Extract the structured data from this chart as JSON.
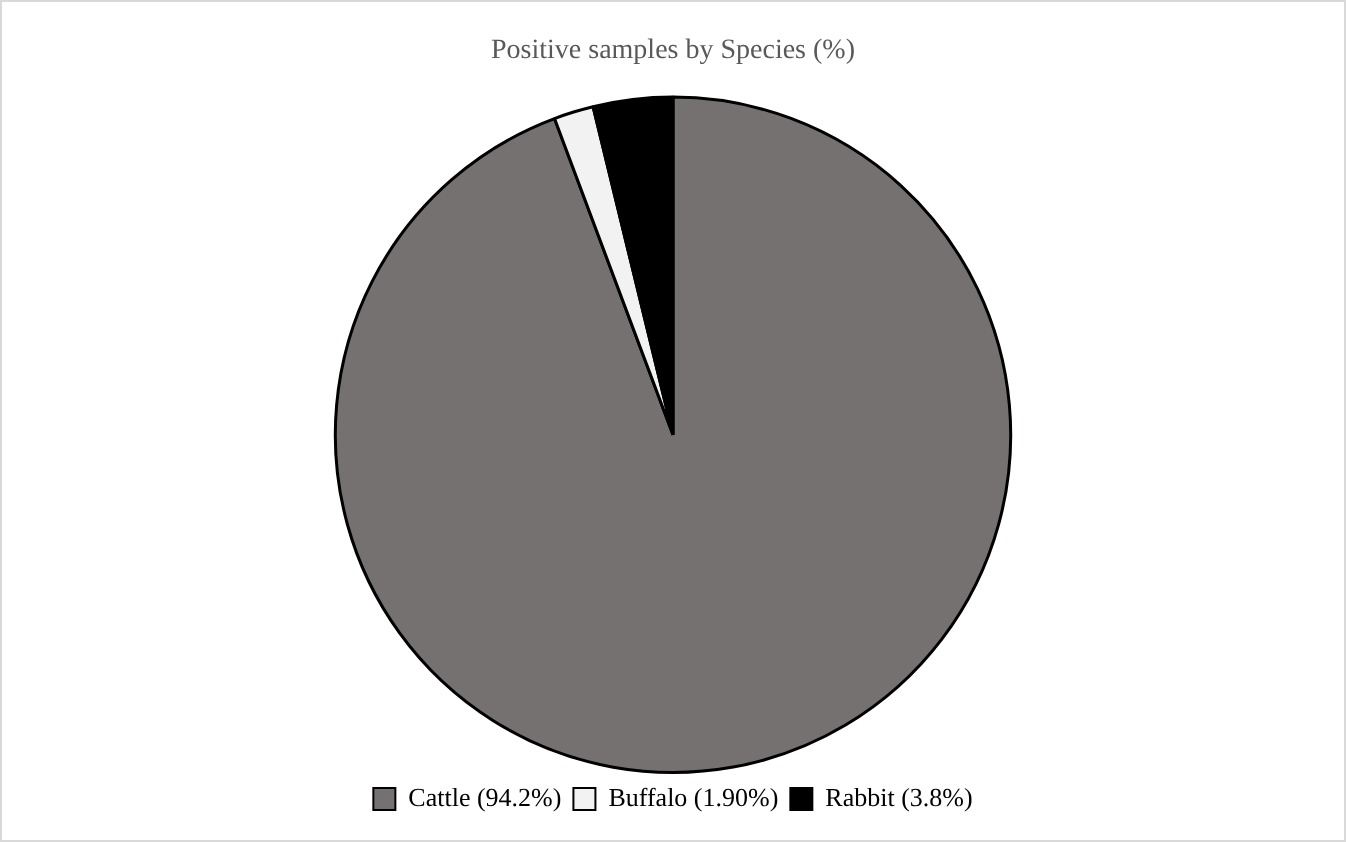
{
  "chart_data": {
    "type": "pie",
    "title": "Positive samples by Species (%)",
    "categories": [
      "Cattle (94.2%)",
      "Buffalo (1.90%)",
      "Rabbit (3.8%)"
    ],
    "values": [
      94.2,
      1.9,
      3.8
    ],
    "colors": [
      "#767171",
      "#f2f2f2",
      "#000000"
    ],
    "legend": "bottom"
  }
}
